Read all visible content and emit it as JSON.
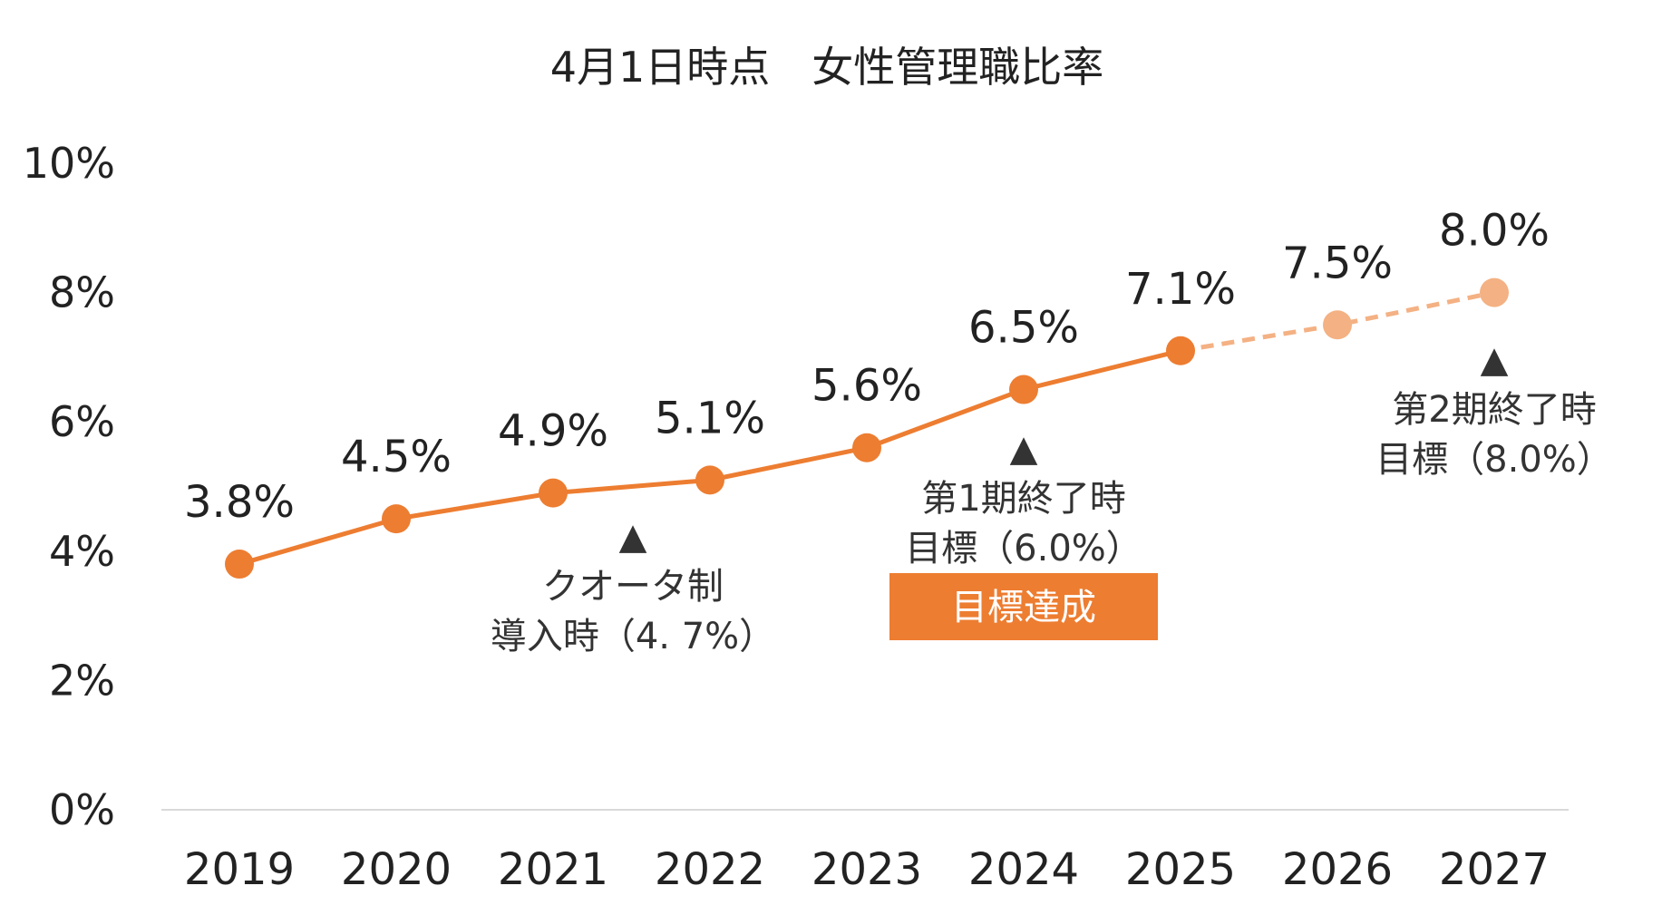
{
  "chart_data": {
    "type": "line",
    "title": "4月1日時点　女性管理職比率",
    "categories": [
      "2019",
      "2020",
      "2021",
      "2022",
      "2023",
      "2024",
      "2025",
      "2026",
      "2027"
    ],
    "values": [
      3.8,
      4.5,
      4.9,
      5.1,
      5.6,
      6.5,
      7.1,
      7.5,
      8.0
    ],
    "value_labels": [
      "3.8%",
      "4.5%",
      "4.9%",
      "5.1%",
      "5.6%",
      "6.5%",
      "7.1%",
      "7.5%",
      "8.0%"
    ],
    "actual_count": 7,
    "ylim": [
      0,
      10
    ],
    "yticks": [
      {
        "value": 0,
        "label": "0%"
      },
      {
        "value": 2,
        "label": "2%"
      },
      {
        "value": 4,
        "label": "4%"
      },
      {
        "value": 6,
        "label": "6%"
      },
      {
        "value": 8,
        "label": "8%"
      },
      {
        "value": 10,
        "label": "10%"
      }
    ],
    "grid": false,
    "colors": {
      "actual": "#ED7D31",
      "target": "#F4B183",
      "axis": "#d9d9d9",
      "marker": "#222222"
    },
    "annotations": [
      {
        "x_index": 2.5,
        "marker": "▲",
        "lines": [
          "クオータ制",
          "導入時（4. 7%）"
        ]
      },
      {
        "x_index": 5,
        "marker": "▲",
        "lines": [
          "第1期終了時",
          "目標（6.0%）"
        ],
        "badge": "目標達成"
      },
      {
        "x_index": 8,
        "marker": "▲",
        "lines": [
          "第2期終了時",
          "目標（8.0%）"
        ]
      }
    ]
  }
}
